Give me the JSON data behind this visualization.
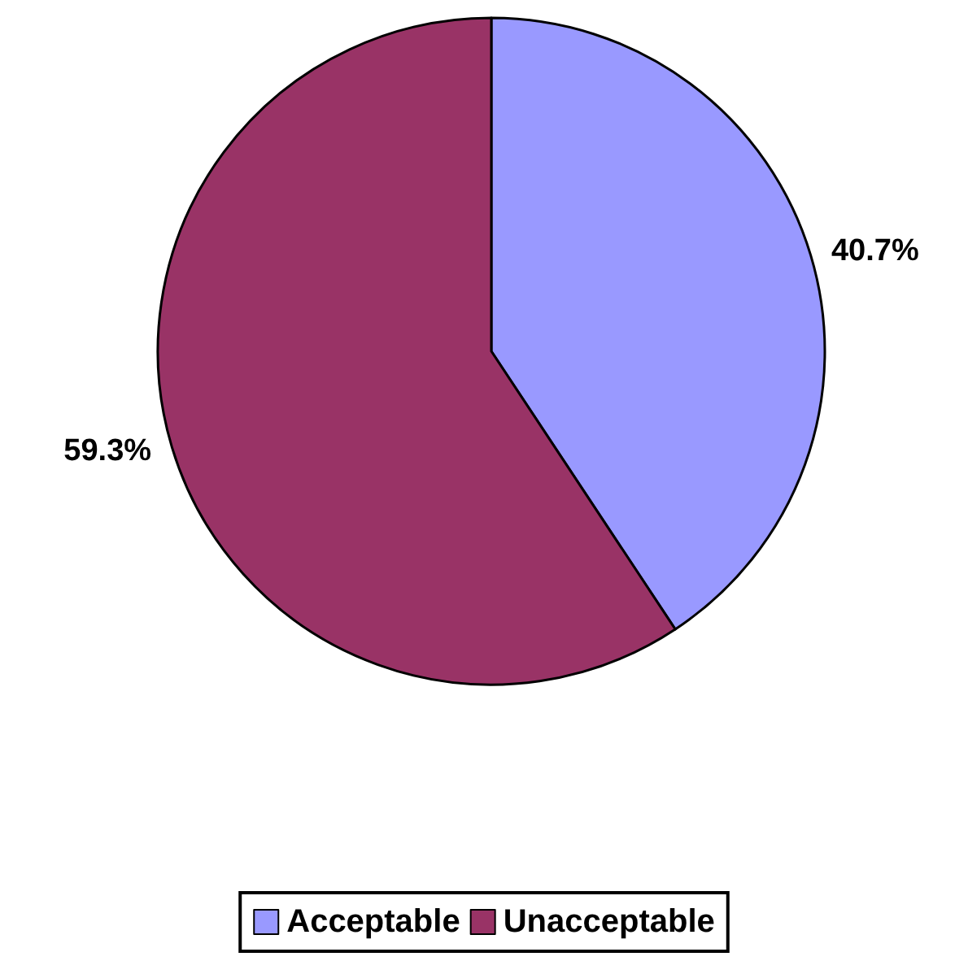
{
  "chart_data": {
    "type": "pie",
    "categories": [
      "Acceptable",
      "Unacceptable"
    ],
    "values": [
      40.7,
      59.3
    ],
    "colors": [
      "#9999ff",
      "#993366"
    ],
    "value_labels": [
      "40.7%",
      "59.3%"
    ],
    "legend": "bottom"
  }
}
